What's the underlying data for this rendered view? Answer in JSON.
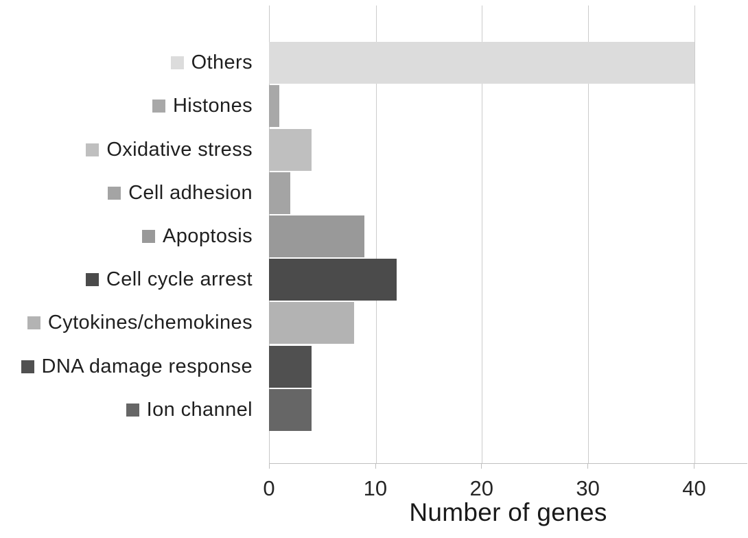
{
  "chart_data": {
    "type": "bar",
    "orientation": "horizontal",
    "title": "",
    "xlabel": "Number of genes",
    "ylabel": "",
    "categories": [
      "Others",
      "Histones",
      "Oxidative stress",
      "Cell adhesion",
      "Apoptosis",
      "Cell cycle arrest",
      "Cytokines/chemokines",
      "DNA damage response",
      "Ion channel"
    ],
    "values": [
      40,
      1,
      4,
      2,
      9,
      12,
      8,
      4,
      4
    ],
    "bar_colors": [
      "#dcdcdc",
      "#a8a8a8",
      "#bfbfbf",
      "#a4a4a4",
      "#999999",
      "#4b4b4b",
      "#b3b3b3",
      "#505050",
      "#666666"
    ],
    "xlim": [
      0,
      45
    ],
    "xticks": [
      0,
      10,
      20,
      30,
      40
    ],
    "grid": true,
    "gridline_color": "#cccccc",
    "axis_line_color": "#bfbfbf",
    "text_color": "#1f1f1f",
    "background_color": "#ffffff",
    "legend_position": "category-labels-with-swatches"
  }
}
